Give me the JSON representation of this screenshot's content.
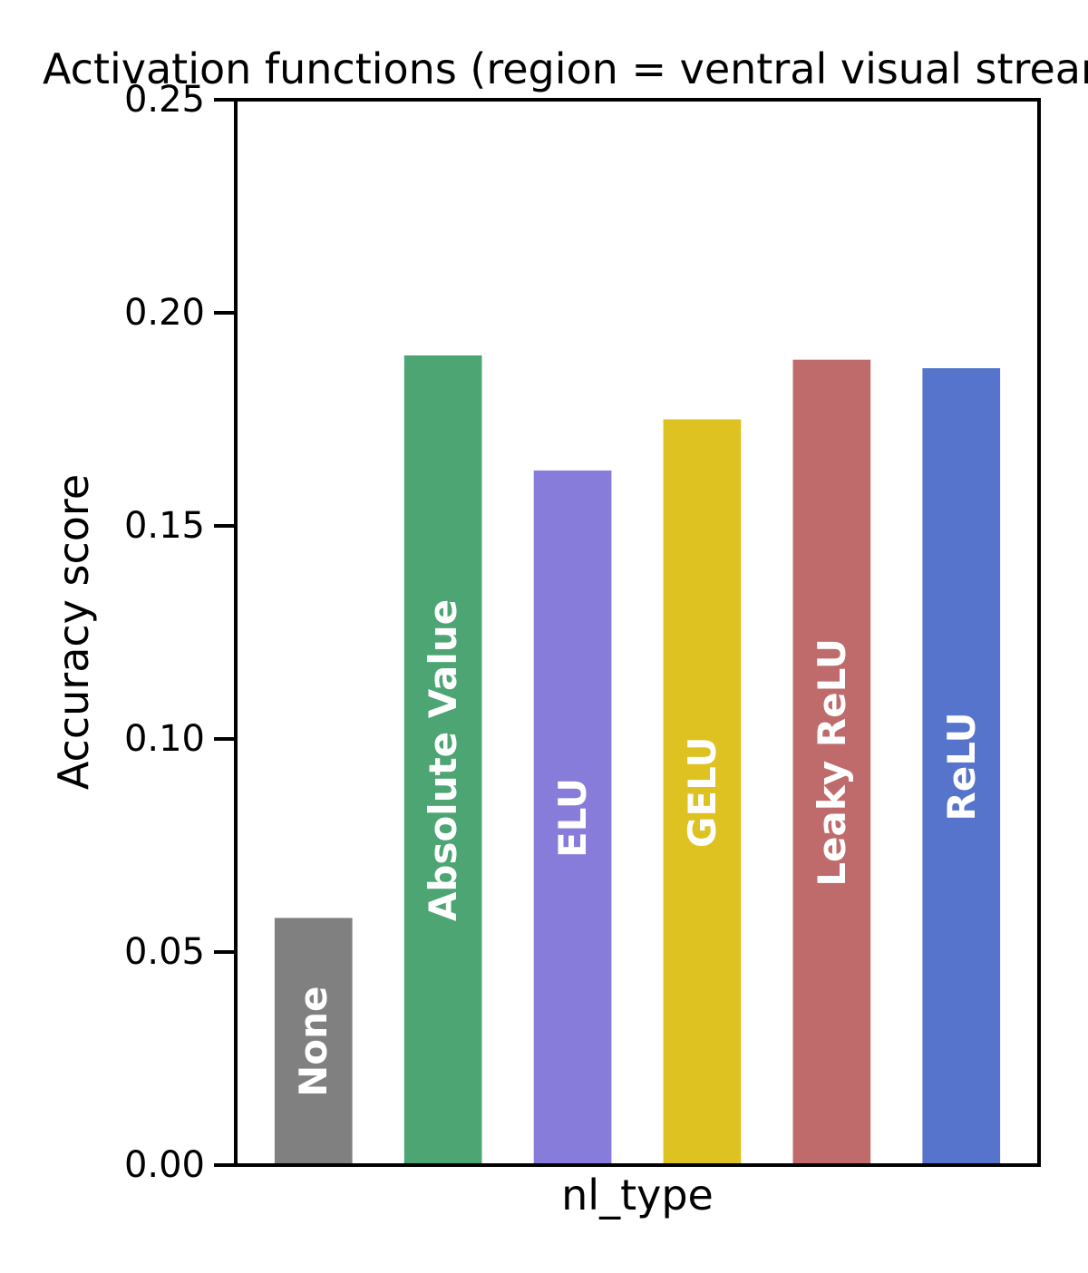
{
  "chart_data": {
    "type": "bar",
    "title": "Activation functions (region = ventral visual stream)",
    "xlabel": "nl_type",
    "ylabel": "Accuracy score",
    "ylim": [
      0,
      0.25
    ],
    "yticks": [
      "0.00",
      "0.05",
      "0.10",
      "0.15",
      "0.20",
      "0.25"
    ],
    "grid": false,
    "legend": "none",
    "categories": [
      "None",
      "Absolute Value",
      "ELU",
      "GELU",
      "Leaky ReLU",
      "ReLU"
    ],
    "values": [
      0.058,
      0.19,
      0.163,
      0.175,
      0.189,
      0.187
    ],
    "colors": [
      "#808080",
      "#4ea574",
      "#887cdb",
      "#ddc221",
      "#bf6b6b",
      "#5674cb"
    ]
  }
}
